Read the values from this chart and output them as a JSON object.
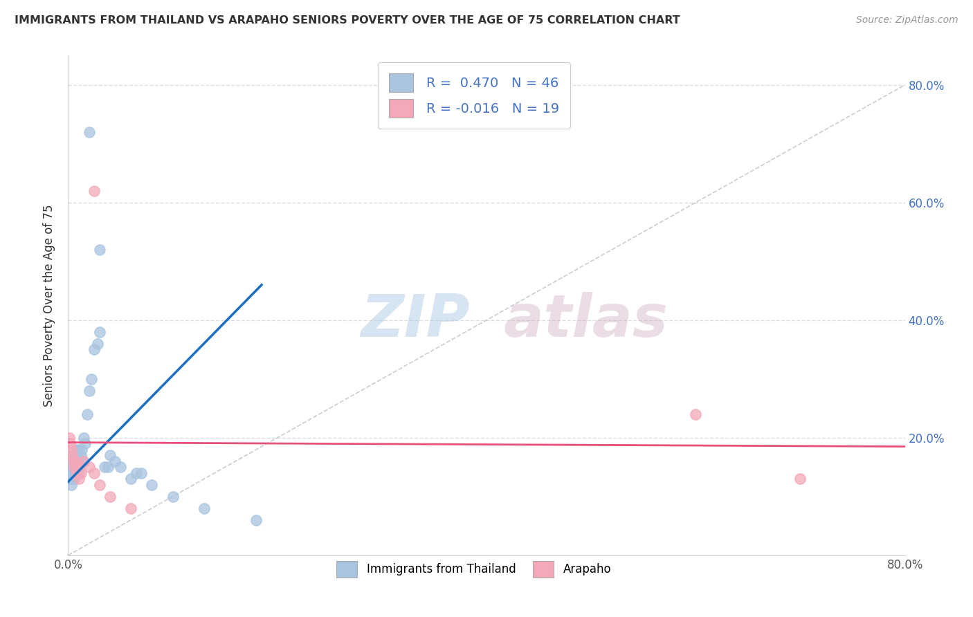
{
  "title": "IMMIGRANTS FROM THAILAND VS ARAPAHO SENIORS POVERTY OVER THE AGE OF 75 CORRELATION CHART",
  "source": "Source: ZipAtlas.com",
  "ylabel": "Seniors Poverty Over the Age of 75",
  "legend_label1": "Immigrants from Thailand",
  "legend_label2": "Arapaho",
  "r1": 0.47,
  "n1": 46,
  "r2": -0.016,
  "n2": 19,
  "xlim": [
    0.0,
    0.8
  ],
  "ylim": [
    0.0,
    0.85
  ],
  "color_blue": "#a8c4e0",
  "color_pink": "#f4a8b8",
  "line_blue": "#1a6fc4",
  "line_pink": "#e8507a",
  "watermark_zip": "ZIP",
  "watermark_atlas": "atlas",
  "background_color": "#ffffff",
  "grid_color": "#dddddd",
  "blue_scatter_x": [
    0.001,
    0.002,
    0.002,
    0.003,
    0.003,
    0.004,
    0.004,
    0.004,
    0.005,
    0.005,
    0.005,
    0.006,
    0.006,
    0.006,
    0.007,
    0.007,
    0.008,
    0.008,
    0.009,
    0.009,
    0.01,
    0.01,
    0.011,
    0.012,
    0.013,
    0.014,
    0.015,
    0.016,
    0.018,
    0.02,
    0.022,
    0.025,
    0.028,
    0.03,
    0.035,
    0.038,
    0.04,
    0.045,
    0.05,
    0.06,
    0.065,
    0.07,
    0.08,
    0.1,
    0.13,
    0.18
  ],
  "blue_scatter_y": [
    0.14,
    0.13,
    0.16,
    0.12,
    0.15,
    0.14,
    0.13,
    0.16,
    0.13,
    0.15,
    0.17,
    0.14,
    0.16,
    0.13,
    0.14,
    0.17,
    0.15,
    0.18,
    0.15,
    0.16,
    0.14,
    0.18,
    0.15,
    0.17,
    0.18,
    0.16,
    0.2,
    0.19,
    0.24,
    0.28,
    0.3,
    0.35,
    0.36,
    0.38,
    0.15,
    0.15,
    0.17,
    0.16,
    0.15,
    0.13,
    0.14,
    0.14,
    0.12,
    0.1,
    0.08,
    0.06
  ],
  "blue_outlier_x": [
    0.02
  ],
  "blue_outlier_y": [
    0.72
  ],
  "blue_mid_x": [
    0.03
  ],
  "blue_mid_y": [
    0.52
  ],
  "pink_scatter_x": [
    0.001,
    0.002,
    0.003,
    0.004,
    0.005,
    0.006,
    0.007,
    0.008,
    0.009,
    0.01,
    0.012,
    0.015,
    0.02,
    0.025,
    0.03,
    0.04,
    0.06,
    0.6,
    0.7
  ],
  "pink_scatter_y": [
    0.2,
    0.19,
    0.18,
    0.17,
    0.16,
    0.15,
    0.16,
    0.14,
    0.15,
    0.13,
    0.14,
    0.16,
    0.15,
    0.14,
    0.12,
    0.1,
    0.08,
    0.24,
    0.13
  ],
  "pink_outlier_x": [
    0.025
  ],
  "pink_outlier_y": [
    0.62
  ],
  "blue_line_x": [
    0.0,
    0.185
  ],
  "blue_line_y": [
    0.125,
    0.46
  ],
  "pink_line_x": [
    0.0,
    0.8
  ],
  "pink_line_y": [
    0.192,
    0.185
  ]
}
